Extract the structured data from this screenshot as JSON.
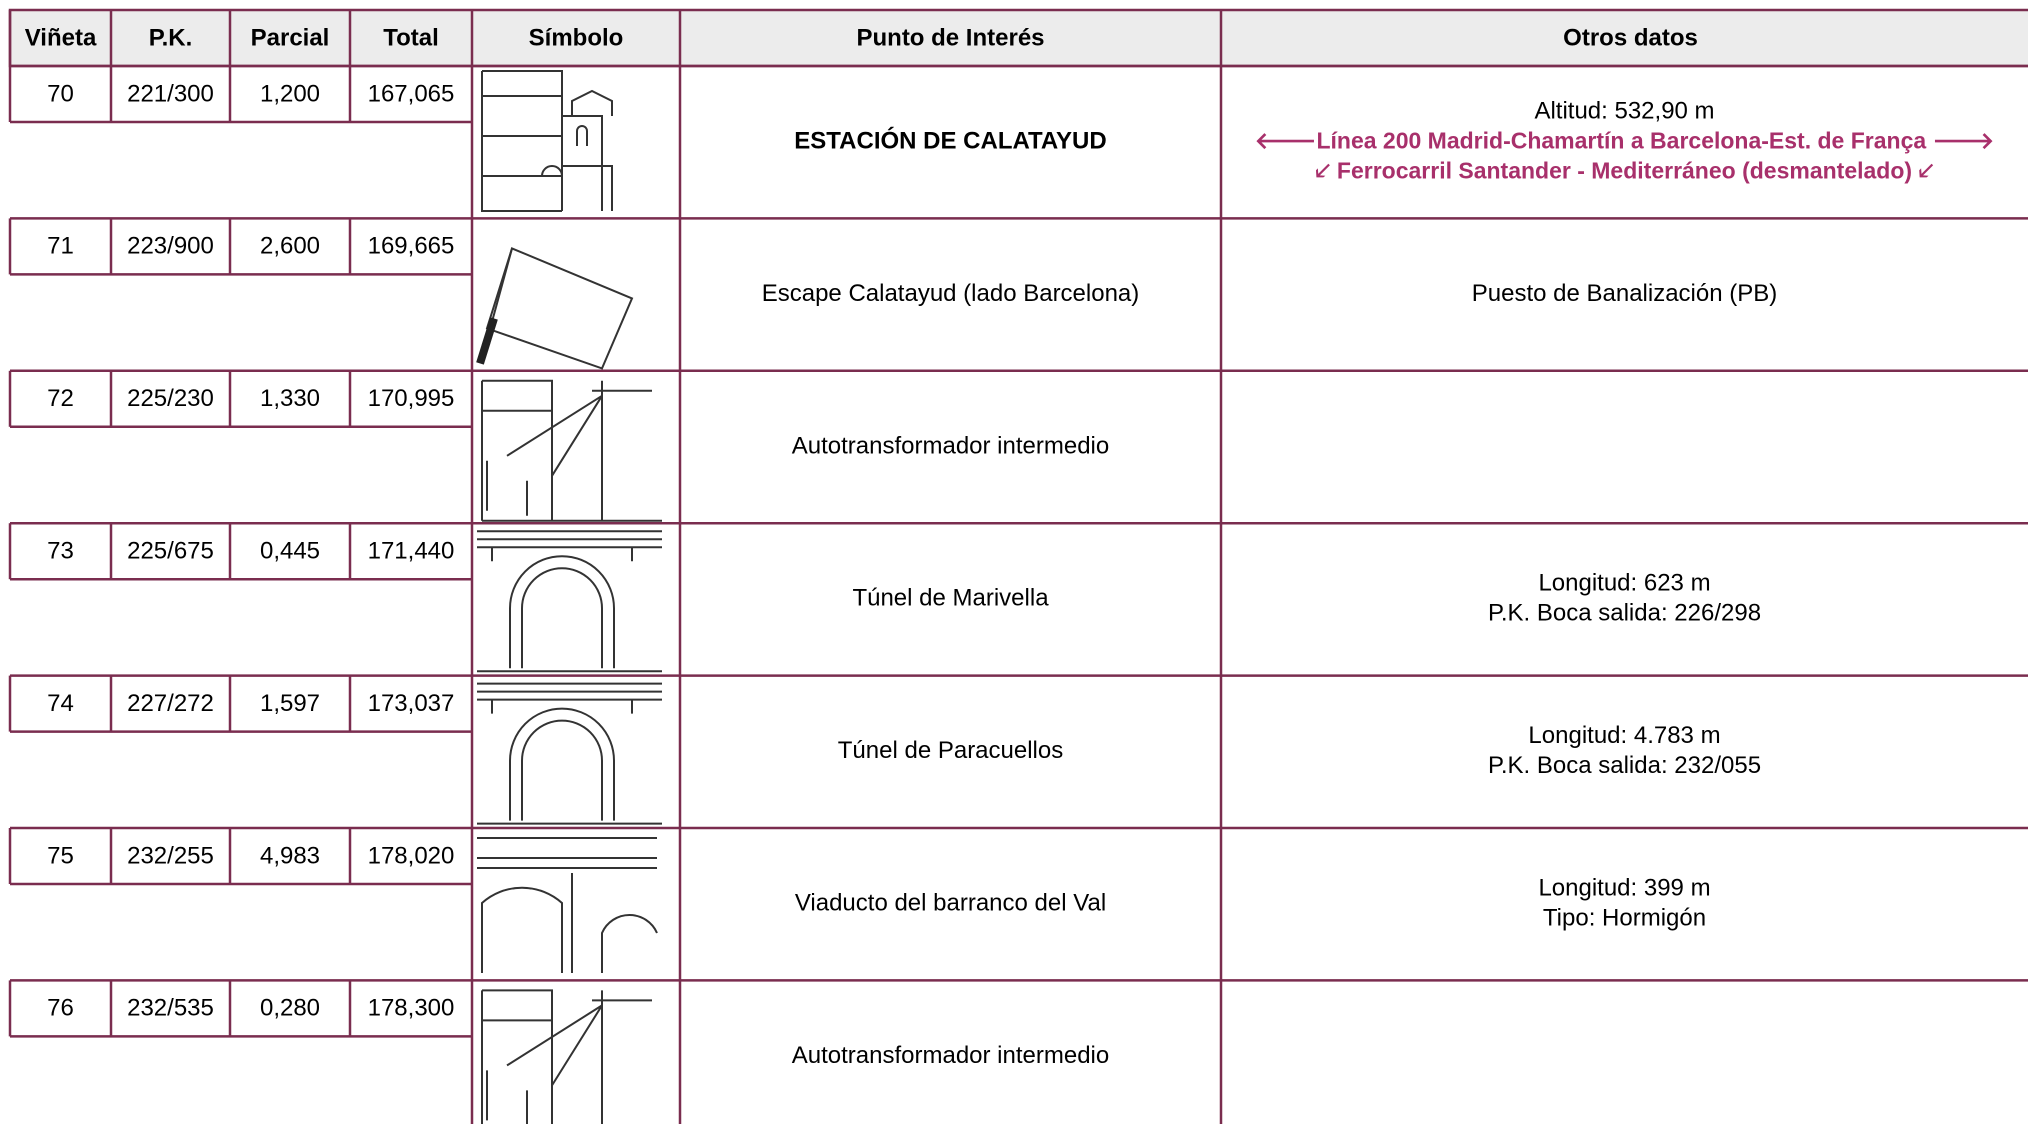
{
  "table": {
    "header": [
      "Viñeta",
      "P.K.",
      "Parcial",
      "Total",
      "Símbolo",
      "Punto de Interés",
      "Otros datos"
    ],
    "rows": [
      {
        "vineta": "70",
        "pk": "221/300",
        "parcial": "1,200",
        "total": "167,065",
        "punto": "ESTACIÓN DE CALATAYUD",
        "otros": [
          "Altitud: 532,90 m",
          "🡐Línea 200 Madrid-Chamartín a Barcelona-Est. de França 🡒",
          "🡗 Ferrocarril Santander - Mediterráneo (desmantelado) 🡗"
        ]
      },
      {
        "vineta": "71",
        "pk": "223/900",
        "parcial": "2,600",
        "total": "169,665",
        "punto": "Escape Calatayud (lado Barcelona)",
        "otros": [
          "Puesto de Banalización (PB)"
        ]
      },
      {
        "vineta": "72",
        "pk": "225/230",
        "parcial": "1,330",
        "total": "170,995",
        "punto": "Autotransformador intermedio",
        "otros": []
      },
      {
        "vineta": "73",
        "pk": "225/675",
        "parcial": "0,445",
        "total": "171,440",
        "punto": "Túnel de Marivella",
        "otros": [
          "Longitud: 623 m",
          "P.K. Boca salida: 226/298"
        ]
      },
      {
        "vineta": "74",
        "pk": "227/272",
        "parcial": "1,597",
        "total": "173,037",
        "punto": "Túnel de Paracuellos",
        "otros": [
          "Longitud: 4.783 m",
          "P.K. Boca salida: 232/055"
        ]
      },
      {
        "vineta": "75",
        "pk": "232/255",
        "parcial": "4,983",
        "total": "178,020",
        "punto": "Viaducto del barranco del Val",
        "otros": [
          "Longitud: 399 m",
          "Tipo: Hormigón"
        ]
      },
      {
        "vineta": "76",
        "pk": "232/535",
        "parcial": "0,280",
        "total": "178,300",
        "punto": "Autotransformador intermedio",
        "otros": []
      }
    ]
  }
}
